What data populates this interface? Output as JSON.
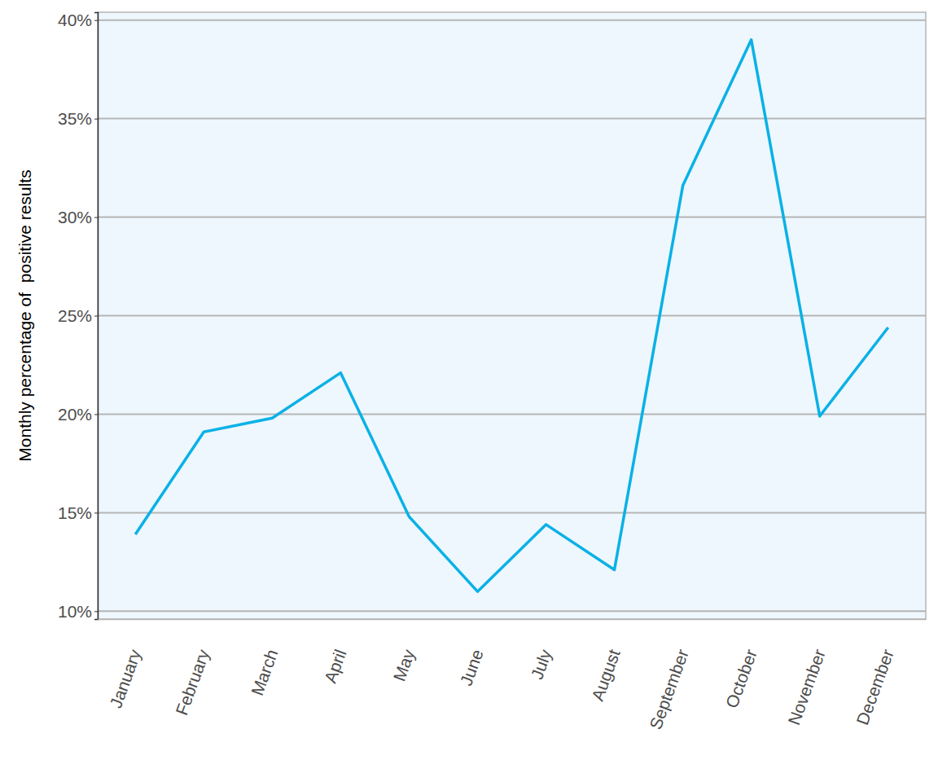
{
  "chart_data": {
    "type": "line",
    "y_label": "Monthly percentage of  positive results",
    "categories": [
      "January",
      "February",
      "March",
      "April",
      "May",
      "June",
      "July",
      "August",
      "September",
      "October",
      "November",
      "December"
    ],
    "values": [
      13.9,
      19.1,
      19.8,
      22.1,
      14.8,
      11.0,
      14.4,
      12.1,
      31.6,
      39.0,
      19.9,
      24.4
    ],
    "color": "#0ab1e6",
    "ylim": [
      9.6,
      40.4
    ],
    "yticks": [
      {
        "value": 10,
        "label": "10%"
      },
      {
        "value": 15,
        "label": "15%"
      },
      {
        "value": 20,
        "label": "20%"
      },
      {
        "value": 25,
        "label": "25%"
      },
      {
        "value": 30,
        "label": "30%"
      },
      {
        "value": 35,
        "label": "35%"
      },
      {
        "value": 40,
        "label": "40%"
      }
    ],
    "grid": true
  }
}
